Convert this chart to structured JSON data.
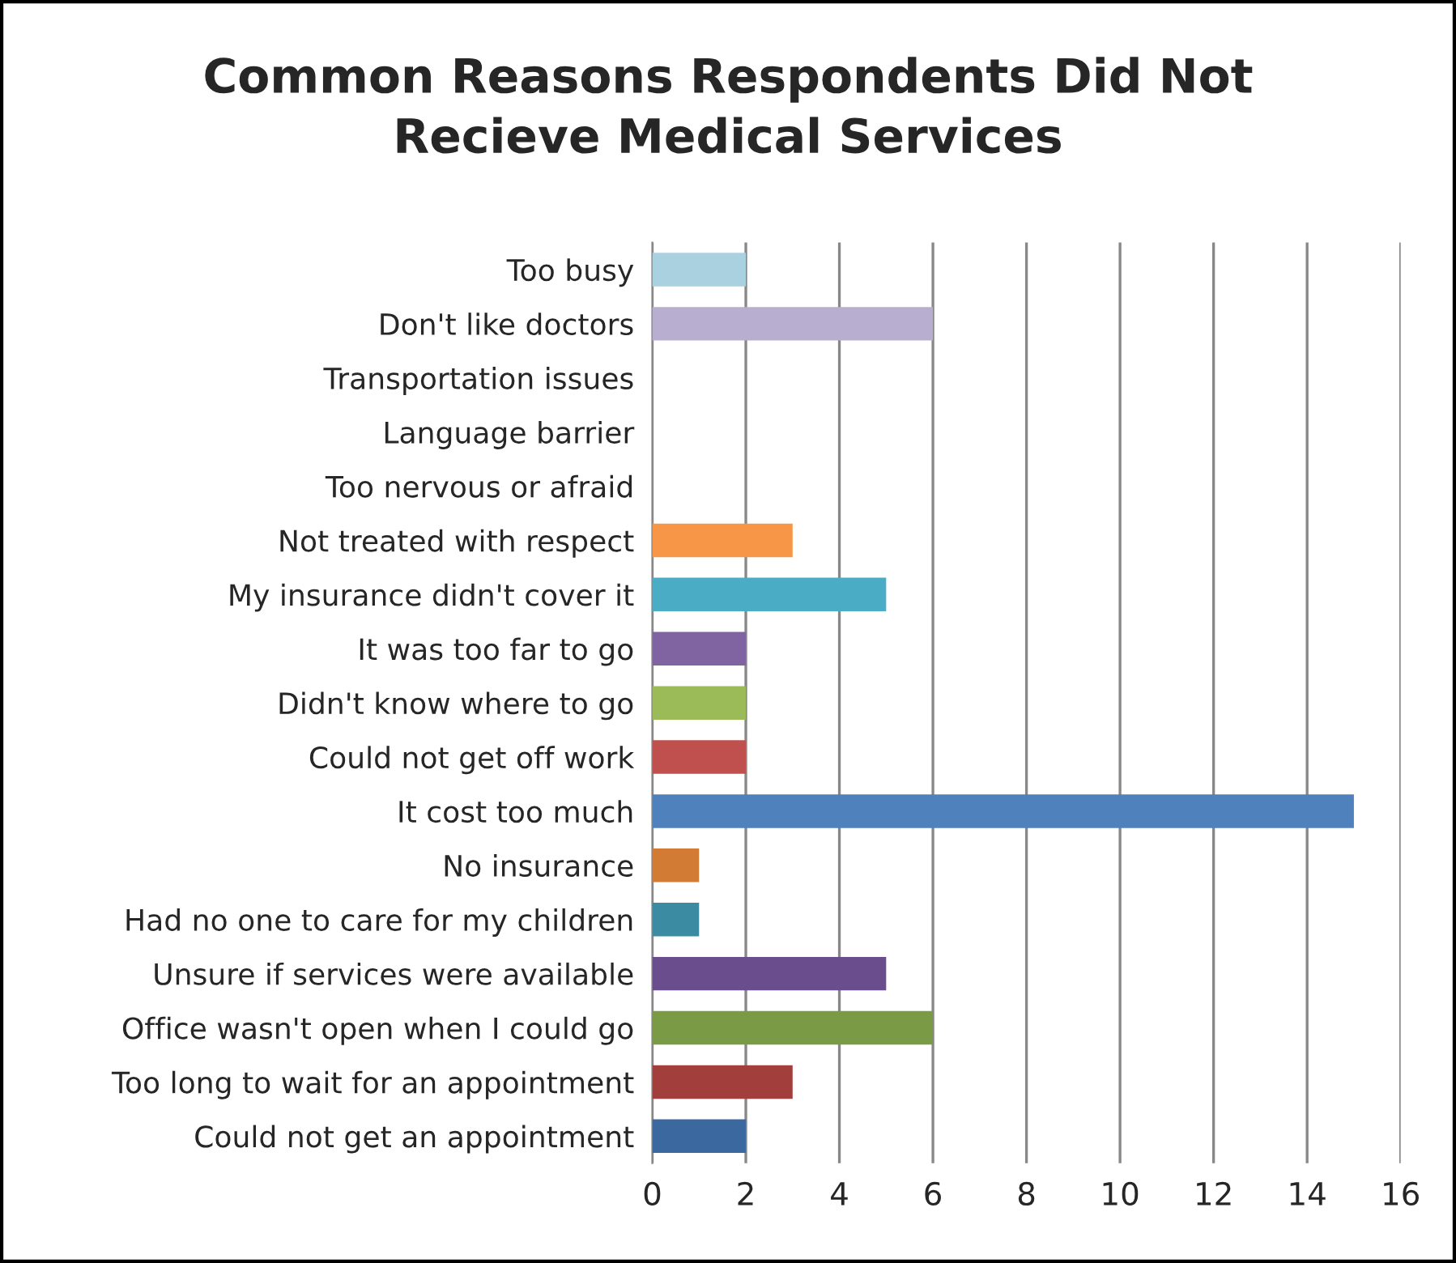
{
  "chart_data": {
    "type": "bar",
    "orientation": "horizontal",
    "title": "Common Reasons Respondents Did Not\nRecieve Medical Services",
    "categories": [
      "Too busy",
      "Don't like doctors",
      "Transportation issues",
      "Language barrier",
      "Too nervous or afraid",
      "Not treated with respect",
      "My insurance didn't cover it",
      "It was too far to go",
      "Didn't know where to go",
      "Could not get off work",
      "It cost too much",
      "No insurance",
      "Had no one to care for my children",
      "Unsure if services were available",
      "Office wasn't open when I could go",
      "Too long to wait for an appointment",
      "Could not get an appointment"
    ],
    "values": [
      2,
      6,
      0,
      0,
      0,
      3,
      5,
      2,
      2,
      2,
      15,
      1,
      1,
      5,
      6,
      3,
      2
    ],
    "colors": [
      "#a9d1e0",
      "#b8aecf",
      null,
      null,
      null,
      "#f79646",
      "#4bacc6",
      "#8064a2",
      "#9bbb59",
      "#c0504d",
      "#4f81bd",
      "#d27b34",
      "#3b8ca3",
      "#6a4d8c",
      "#7a9a45",
      "#a23f3c",
      "#3c68a0"
    ],
    "xlim": [
      0,
      16
    ],
    "xticks": [
      0,
      2,
      4,
      6,
      8,
      10,
      12,
      14,
      16
    ],
    "grid": "x",
    "legend": false
  }
}
